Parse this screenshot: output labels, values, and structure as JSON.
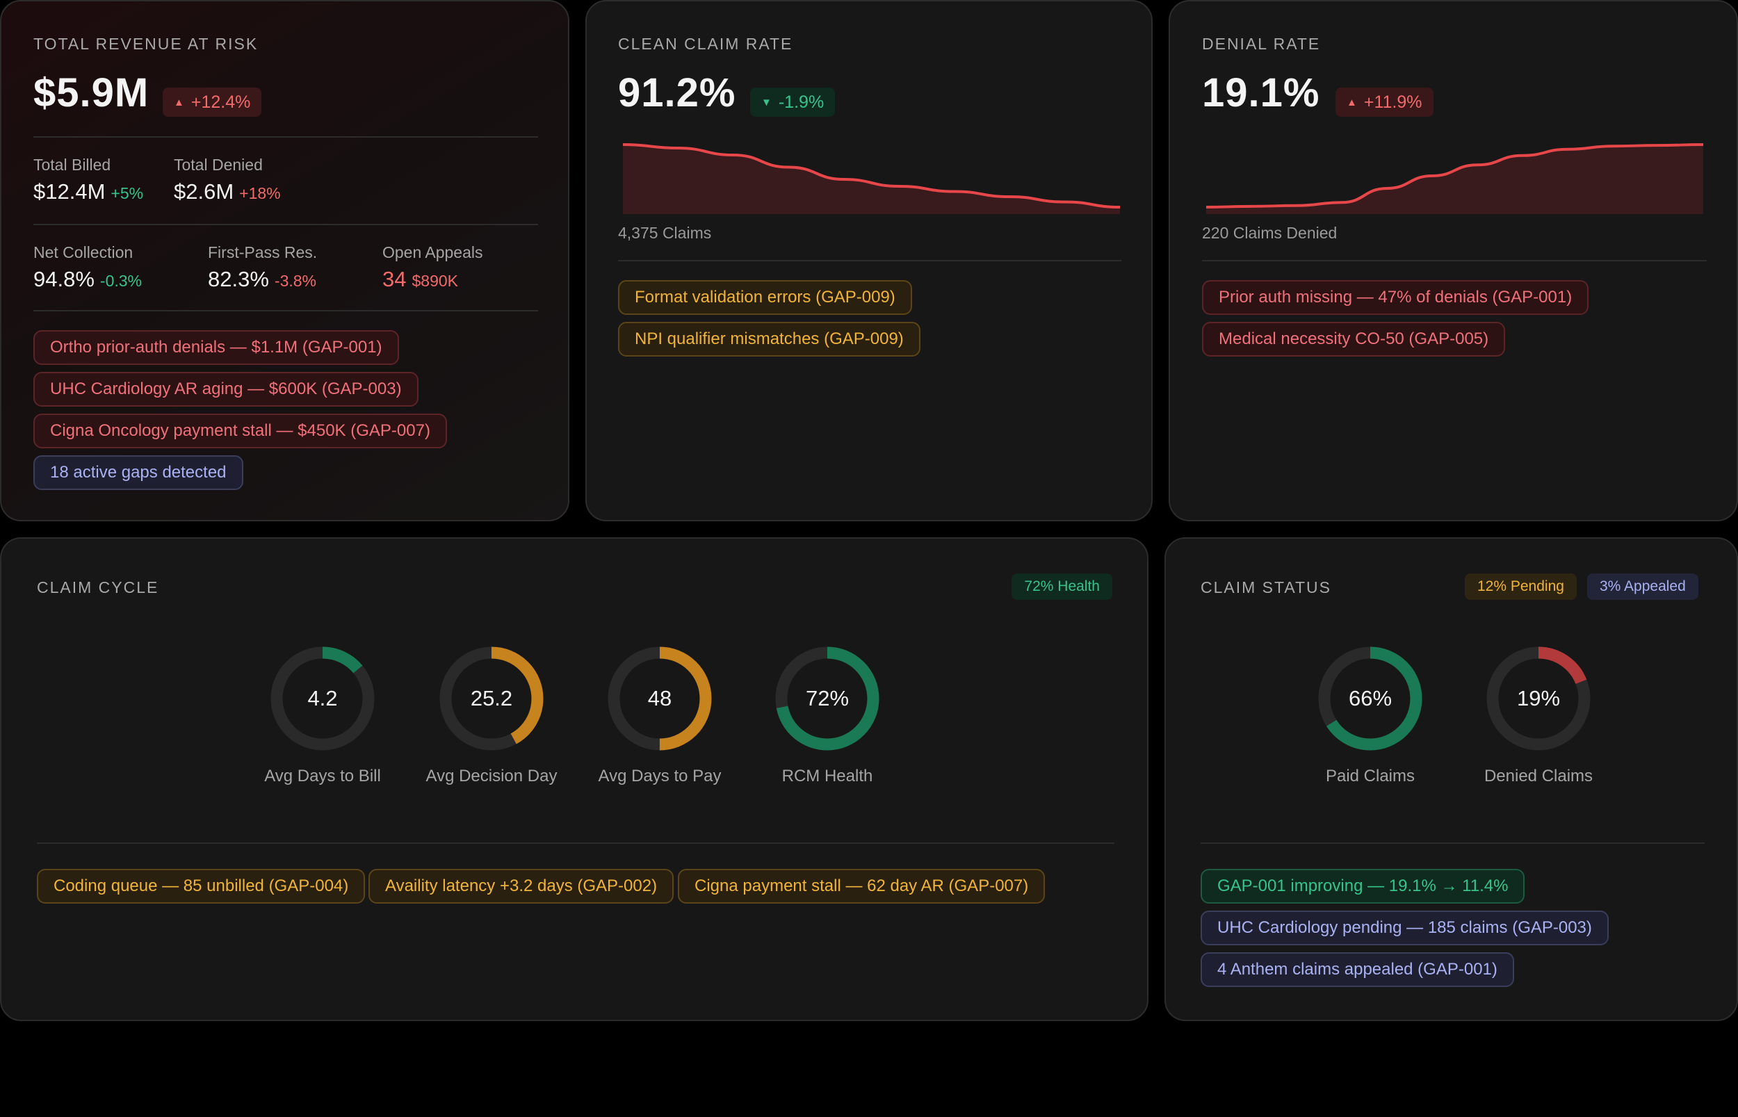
{
  "colors": {
    "green": "#37c48b",
    "gauge_green": "#1a7a55",
    "amber": "#c7841e",
    "gauge_red": "#b23a3a",
    "red": "#f26b6b",
    "track": "#2a2a2a"
  },
  "revenue": {
    "label": "TOTAL REVENUE AT RISK",
    "value": "$5.9M",
    "delta": "+12.4%",
    "delta_icon": "triangle-up-icon",
    "total_billed_label": "Total Billed",
    "total_billed_value": "$12.4M",
    "total_billed_change": "+5%",
    "total_denied_label": "Total Denied",
    "total_denied_value": "$2.6M",
    "total_denied_change": "+18%",
    "net_collection_label": "Net Collection",
    "net_collection_value": "94.8%",
    "net_collection_change": "-0.3%",
    "first_pass_label": "First-Pass Res.",
    "first_pass_value": "82.3%",
    "first_pass_change": "-3.8%",
    "open_appeals_label": "Open Appeals",
    "open_appeals_count": "34",
    "open_appeals_amount": "$890K",
    "chips": [
      "Ortho prior-auth denials — $1.1M (GAP-001)",
      "UHC Cardiology AR aging — $600K (GAP-003)",
      "Cigna Oncology payment stall — $450K (GAP-007)",
      "18 active gaps detected"
    ]
  },
  "clean_claim": {
    "label": "CLEAN CLAIM RATE",
    "value": "91.2%",
    "delta": "-1.9%",
    "delta_icon": "triangle-down-icon",
    "caption": "4,375 Claims",
    "trend": [
      98,
      96,
      92,
      85,
      78,
      74,
      71,
      68,
      65,
      62
    ],
    "chips": [
      "Format validation errors (GAP-009)",
      "NPI qualifier mismatches (GAP-009)"
    ]
  },
  "denial": {
    "label": "DENIAL RATE",
    "value": "19.1%",
    "delta": "+11.9%",
    "delta_icon": "triangle-up-icon",
    "caption": "220 Claims Denied",
    "trend": [
      60,
      60.5,
      61,
      63,
      72,
      80,
      87,
      93,
      97,
      99,
      99.5,
      100
    ],
    "chips": [
      "Prior auth missing — 47% of denials (GAP-001)",
      "Medical necessity CO-50 (GAP-005)"
    ]
  },
  "cycle": {
    "label": "CLAIM CYCLE",
    "health_pill": "72% Health",
    "gauges": [
      {
        "value": "4.2",
        "caption": "Avg Days to Bill",
        "fraction": 0.14,
        "color": "green"
      },
      {
        "value": "25.2",
        "caption": "Avg Decision Day",
        "fraction": 0.42,
        "color": "amber"
      },
      {
        "value": "48",
        "caption": "Avg Days to Pay",
        "fraction": 0.5,
        "color": "amber"
      },
      {
        "value": "72%",
        "caption": "RCM Health",
        "fraction": 0.72,
        "color": "green"
      }
    ],
    "chips": [
      "Coding queue — 85 unbilled (GAP-004)",
      "Availity latency +3.2 days (GAP-002)",
      "Cigna payment stall — 62 day AR (GAP-007)"
    ]
  },
  "status": {
    "label": "CLAIM STATUS",
    "pending_pill": "12% Pending",
    "appealed_pill": "3% Appealed",
    "gauges": [
      {
        "value": "66%",
        "caption": "Paid Claims",
        "fraction": 0.66,
        "color": "green"
      },
      {
        "value": "19%",
        "caption": "Denied Claims",
        "fraction": 0.19,
        "color": "red"
      }
    ],
    "chips": [
      "GAP-001 improving — 19.1% → 11.4%",
      "UHC Cardiology pending — 185 claims (GAP-003)",
      "4 Anthem claims appealed (GAP-001)"
    ]
  }
}
